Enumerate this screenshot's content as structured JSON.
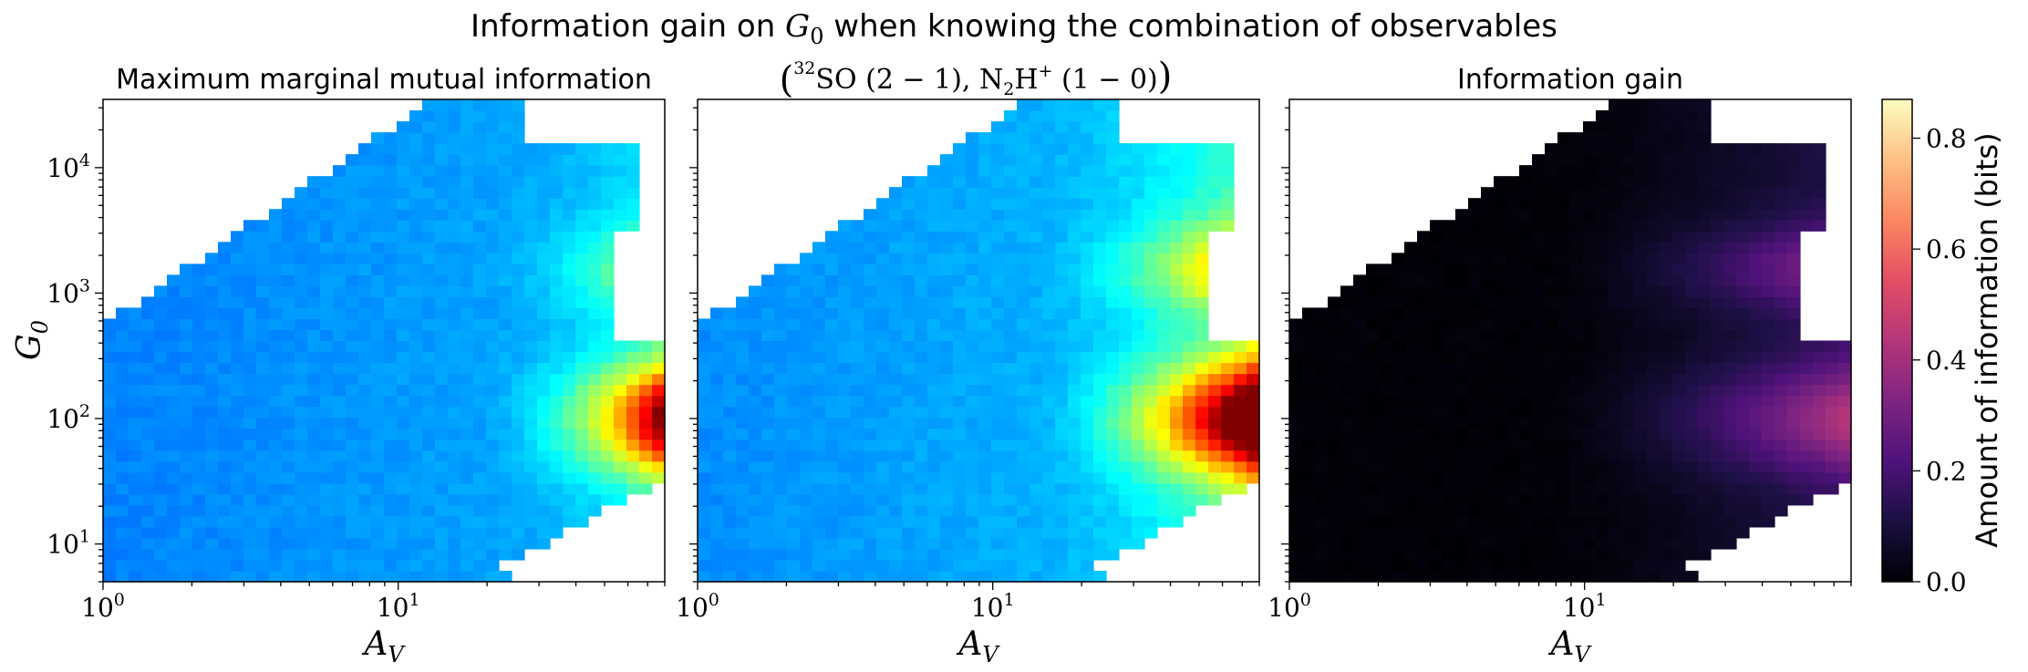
{
  "suptitle_prefix": "Information gain on ",
  "suptitle_var": "G",
  "suptitle_sub": "0",
  "suptitle_suffix": " when knowing the combination of observables",
  "chart_data": [
    {
      "type": "heatmap",
      "title": "Maximum marginal mutual information",
      "xlabel": "A_V",
      "ylabel": "G_0",
      "xscale": "log",
      "yscale": "log",
      "xlim": [
        1,
        80
      ],
      "ylim": [
        5,
        35000
      ],
      "xticks": [
        {
          "value": 1,
          "label": "10^0"
        },
        {
          "value": 10,
          "label": "10^1"
        }
      ],
      "yticks": [
        {
          "value": 10,
          "label": "10^1"
        },
        {
          "value": 100,
          "label": "10^2"
        },
        {
          "value": 1000,
          "label": "10^3"
        },
        {
          "value": 10000,
          "label": "10^4"
        }
      ],
      "colormap": "jet",
      "peak_value": 0.45,
      "peak_location": {
        "A_V": [
          65,
          80
        ],
        "G_0": [
          45,
          300
        ]
      }
    },
    {
      "type": "heatmap",
      "title": "(32SO (2 − 1), N2H+ (1 − 0))",
      "title_parts": {
        "iso": "32",
        "mol1": "SO",
        "trans1": "(2 − 1)",
        "mol2a": "N",
        "mol2sub": "2",
        "mol2b": "H",
        "mol2sup": "+",
        "trans2": "(1 − 0)"
      },
      "xlabel": "A_V",
      "xscale": "log",
      "yscale": "log",
      "xlim": [
        1,
        80
      ],
      "ylim": [
        5,
        35000
      ],
      "xticks": [
        {
          "value": 1,
          "label": "10^0"
        },
        {
          "value": 10,
          "label": "10^1"
        }
      ],
      "colormap": "jet",
      "peak_value": 0.55,
      "peak_location": {
        "A_V": [
          55,
          80
        ],
        "G_0": [
          40,
          250
        ]
      }
    },
    {
      "type": "heatmap",
      "title": "Information gain",
      "xlabel": "A_V",
      "xscale": "log",
      "yscale": "log",
      "xlim": [
        1,
        80
      ],
      "ylim": [
        5,
        35000
      ],
      "xticks": [
        {
          "value": 1,
          "label": "10^0"
        },
        {
          "value": 10,
          "label": "10^1"
        }
      ],
      "colormap": "magma",
      "peak_value": 0.3,
      "peak_location": {
        "A_V": [
          25,
          70
        ],
        "G_0": [
          40,
          250
        ]
      }
    }
  ],
  "colorbar": {
    "label": "Amount of information (bits)",
    "range": [
      0,
      0.87
    ],
    "ticks": [
      0.0,
      0.2,
      0.4,
      0.6,
      0.8
    ],
    "tick_labels": [
      "0.0",
      "0.2",
      "0.4",
      "0.6",
      "0.8"
    ]
  },
  "colors": {
    "jet_base": "#0000b4",
    "magma_base": "#000004"
  }
}
